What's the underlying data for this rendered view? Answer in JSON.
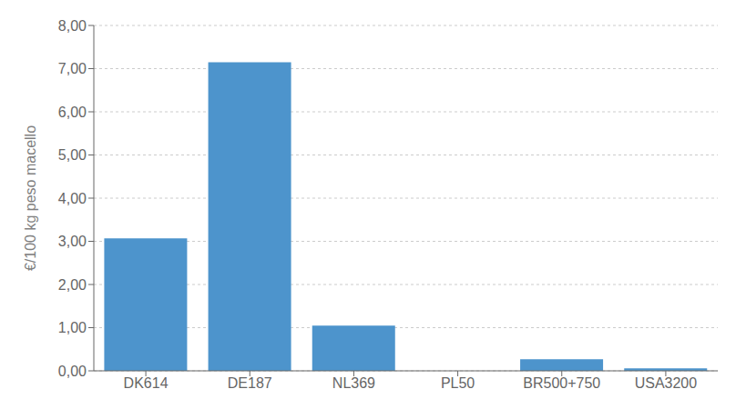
{
  "chart_data": {
    "type": "bar",
    "categories": [
      "DK614",
      "DE187",
      "NL369",
      "PL50",
      "BR500+750",
      "USA3200"
    ],
    "values": [
      3.07,
      7.15,
      1.05,
      0.0,
      0.27,
      0.06
    ],
    "color": "#4d94cc",
    "ylabel": "€/100 kg peso macello",
    "ylim": [
      0,
      8.0
    ],
    "yticks": [
      {
        "value": 0.0,
        "label": "0,00"
      },
      {
        "value": 1.0,
        "label": "1,00"
      },
      {
        "value": 2.0,
        "label": "2,00"
      },
      {
        "value": 3.0,
        "label": "3,00"
      },
      {
        "value": 4.0,
        "label": "4,00"
      },
      {
        "value": 5.0,
        "label": "5,00"
      },
      {
        "value": 6.0,
        "label": "6,00"
      },
      {
        "value": 7.0,
        "label": "7,00"
      },
      {
        "value": 8.0,
        "label": "8,00"
      }
    ],
    "grid": true
  }
}
